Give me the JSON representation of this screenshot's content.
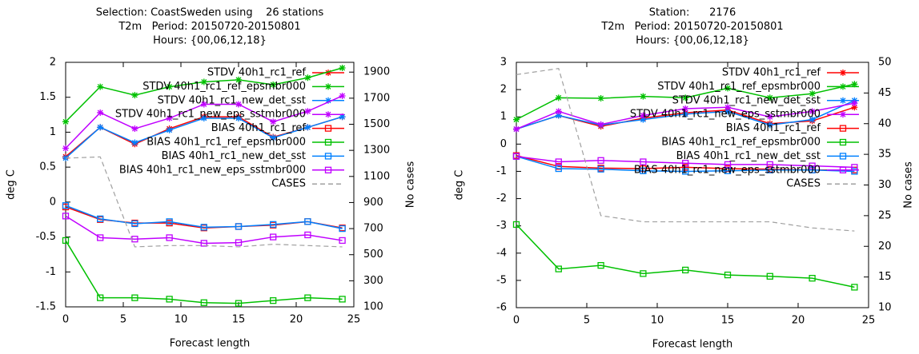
{
  "chart_data": [
    {
      "type": "line",
      "title": [
        "Selection: CoastSweden using    26 stations",
        "T2m   Period: 20150720-20150801",
        "Hours: {00,06,12,18}"
      ],
      "xlabel": "Forecast length",
      "ylabel": "deg C",
      "y2label": "No cases",
      "x": [
        0,
        3,
        6,
        9,
        12,
        15,
        18,
        21,
        24
      ],
      "xlim": [
        0,
        25
      ],
      "xticks": [
        0,
        5,
        10,
        15,
        20,
        25
      ],
      "ylim": [
        -1.5,
        2
      ],
      "yticks": [
        -1.5,
        -1,
        -0.5,
        0,
        0.5,
        1,
        1.5,
        2
      ],
      "y2lim": [
        100,
        1975
      ],
      "y2ticks": [
        100,
        300,
        500,
        700,
        900,
        1100,
        1300,
        1500,
        1700,
        1900
      ],
      "legend": "top right",
      "series": [
        {
          "name": "STDV 40h1_rc1_ref",
          "color": "#ff0000",
          "marker": "star",
          "values": [
            0.65,
            1.07,
            0.83,
            1.05,
            1.22,
            1.22,
            0.93,
            1.07,
            1.22
          ]
        },
        {
          "name": "STDV 40h1_rc1_ref_epsmbr000",
          "color": "#00c000",
          "marker": "star",
          "values": [
            1.15,
            1.65,
            1.53,
            1.65,
            1.72,
            1.75,
            1.68,
            1.78,
            1.92
          ]
        },
        {
          "name": "STDV 40h1_rc1_new_det_sst",
          "color": "#0080ff",
          "marker": "star",
          "values": [
            0.63,
            1.07,
            0.85,
            1.03,
            1.2,
            1.2,
            0.92,
            1.07,
            1.22
          ]
        },
        {
          "name": "STDV 40h1_rc1_new_eps_sstmbr000",
          "color": "#c000ff",
          "marker": "star",
          "values": [
            0.77,
            1.28,
            1.05,
            1.2,
            1.4,
            1.4,
            1.15,
            1.3,
            1.52
          ]
        },
        {
          "name": "BIAS 40h1_rc1_ref",
          "color": "#ff0000",
          "marker": "square",
          "values": [
            -0.07,
            -0.25,
            -0.3,
            -0.3,
            -0.37,
            -0.35,
            -0.33,
            -0.28,
            -0.37
          ]
        },
        {
          "name": "BIAS 40h1_rc1_ref_epsmbr000",
          "color": "#00c000",
          "marker": "square",
          "values": [
            -0.55,
            -1.37,
            -1.37,
            -1.39,
            -1.44,
            -1.45,
            -1.41,
            -1.37,
            -1.39
          ]
        },
        {
          "name": "BIAS 40h1_rc1_new_det_sst",
          "color": "#0080ff",
          "marker": "square",
          "values": [
            -0.05,
            -0.24,
            -0.31,
            -0.28,
            -0.36,
            -0.35,
            -0.32,
            -0.28,
            -0.38
          ]
        },
        {
          "name": "BIAS 40h1_rc1_new_eps_sstmbr000",
          "color": "#c000ff",
          "marker": "square",
          "values": [
            -0.2,
            -0.51,
            -0.53,
            -0.51,
            -0.59,
            -0.58,
            -0.5,
            -0.47,
            -0.55
          ]
        },
        {
          "name": "CASES",
          "color": "#a0a0a0",
          "marker": "none",
          "line_style": "dashed",
          "axis": "y2",
          "values": [
            1240,
            1250,
            560,
            570,
            570,
            560,
            580,
            570,
            560
          ]
        }
      ]
    },
    {
      "type": "line",
      "title": [
        "Station:      2176",
        "T2m   Period: 20150720-20150801",
        "Hours: {00,06,12,18}"
      ],
      "xlabel": "Forecast length",
      "ylabel": "deg C",
      "y2label": "No cases",
      "x": [
        0,
        3,
        6,
        9,
        12,
        15,
        18,
        21,
        24
      ],
      "xlim": [
        0,
        25
      ],
      "xticks": [
        0,
        5,
        10,
        15,
        20,
        25
      ],
      "ylim": [
        -6,
        3
      ],
      "yticks": [
        -6,
        -5,
        -4,
        -3,
        -2,
        -1,
        0,
        1,
        2,
        3
      ],
      "y2lim": [
        10,
        50
      ],
      "y2ticks": [
        10,
        15,
        20,
        25,
        30,
        35,
        40,
        45,
        50
      ],
      "legend": "top right",
      "series": [
        {
          "name": "STDV 40h1_rc1_ref",
          "color": "#ff0000",
          "marker": "star",
          "values": [
            0.55,
            1.05,
            0.65,
            0.95,
            1.15,
            1.25,
            0.75,
            0.85,
            1.35
          ]
        },
        {
          "name": "STDV 40h1_rc1_ref_epsmbr000",
          "color": "#00c000",
          "marker": "star",
          "values": [
            0.9,
            1.7,
            1.68,
            1.75,
            1.7,
            2.05,
            1.7,
            1.85,
            2.2
          ]
        },
        {
          "name": "STDV 40h1_rc1_new_det_sst",
          "color": "#0080ff",
          "marker": "star",
          "values": [
            0.55,
            1.05,
            0.7,
            0.9,
            1.1,
            1.2,
            0.7,
            0.9,
            1.6
          ]
        },
        {
          "name": "STDV 40h1_rc1_new_eps_sstmbr000",
          "color": "#c000ff",
          "marker": "star",
          "values": [
            0.55,
            1.2,
            0.72,
            1.05,
            1.3,
            1.35,
            1.0,
            1.2,
            1.5
          ]
        },
        {
          "name": "BIAS 40h1_rc1_ref",
          "color": "#ff0000",
          "marker": "square",
          "values": [
            -0.42,
            -0.82,
            -0.88,
            -0.9,
            -0.85,
            -0.9,
            -0.92,
            -0.95,
            -0.95
          ]
        },
        {
          "name": "BIAS 40h1_rc1_ref_epsmbr000",
          "color": "#00c000",
          "marker": "square",
          "values": [
            -2.95,
            -4.58,
            -4.45,
            -4.75,
            -4.62,
            -4.8,
            -4.85,
            -4.92,
            -5.25
          ]
        },
        {
          "name": "BIAS 40h1_rc1_new_det_sst",
          "color": "#0080ff",
          "marker": "square",
          "values": [
            -0.45,
            -0.9,
            -0.92,
            -0.98,
            -1.0,
            -0.98,
            -0.95,
            -0.95,
            -1.0
          ]
        },
        {
          "name": "BIAS 40h1_rc1_new_eps_sstmbr000",
          "color": "#c000ff",
          "marker": "square",
          "values": [
            -0.45,
            -0.65,
            -0.6,
            -0.65,
            -0.7,
            -0.75,
            -0.75,
            -0.8,
            -0.85
          ]
        },
        {
          "name": "CASES",
          "color": "#a0a0a0",
          "marker": "none",
          "line_style": "dashed",
          "axis": "y2",
          "values": [
            48,
            49,
            25,
            24,
            24,
            24,
            24,
            23,
            22.5
          ]
        }
      ]
    }
  ]
}
